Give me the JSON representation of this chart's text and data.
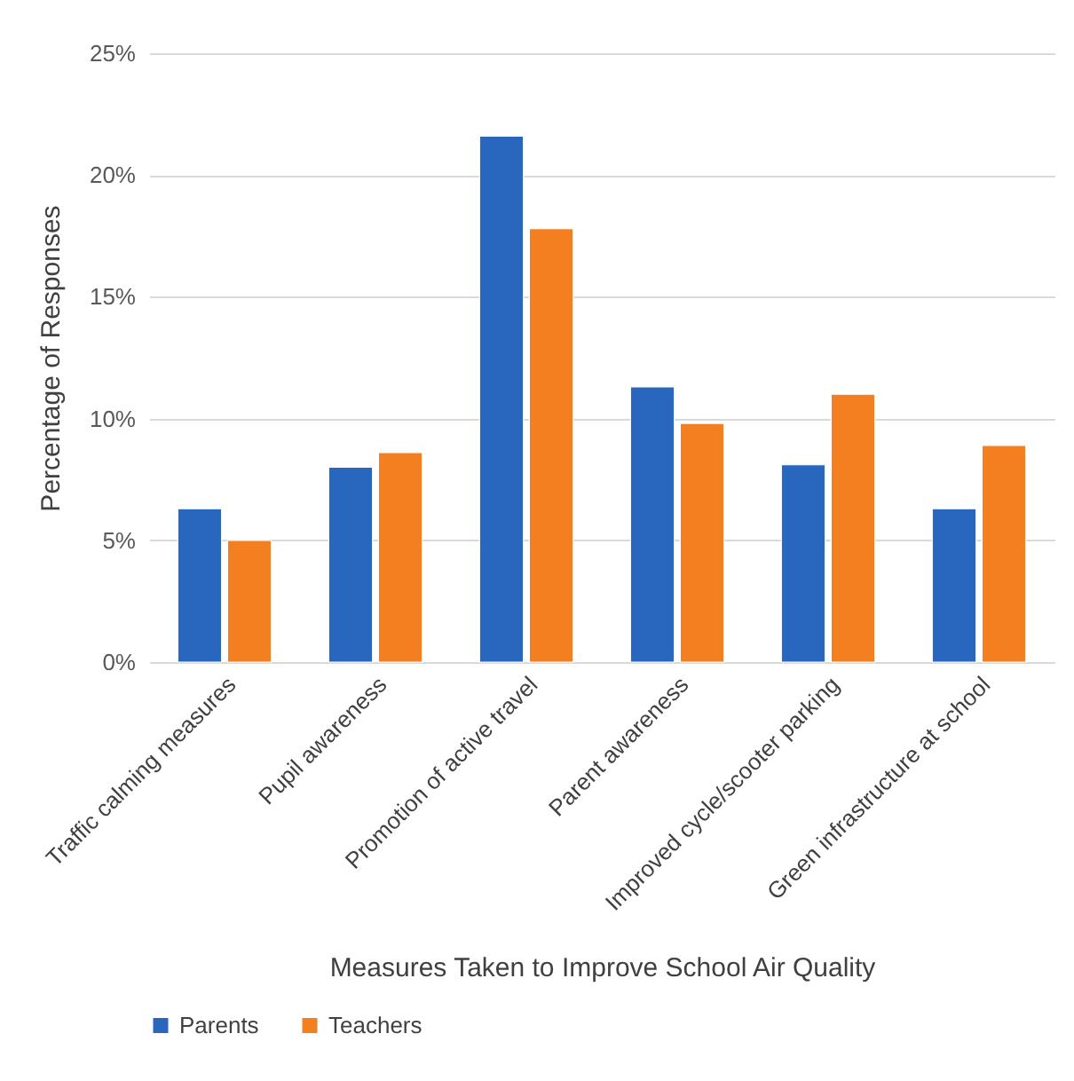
{
  "chart_data": {
    "type": "bar",
    "xlabel": "Measures Taken to Improve School Air Quality",
    "ylabel": "Percentage of Responses",
    "categories": [
      "Traffic calming measures",
      "Pupil awareness",
      "Promotion of active travel",
      "Parent awareness",
      "Improved cycle/scooter parking",
      "Green infrastructure at school"
    ],
    "series": [
      {
        "name": "Parents",
        "color": "#2867bd",
        "values": [
          6.3,
          8.0,
          21.6,
          11.3,
          8.1,
          6.3
        ]
      },
      {
        "name": "Teachers",
        "color": "#f47f20",
        "values": [
          5.0,
          8.6,
          17.8,
          9.8,
          11.0,
          8.9
        ]
      }
    ],
    "ylim": [
      0,
      25
    ],
    "yticks": [
      {
        "value": 0,
        "label": "0%"
      },
      {
        "value": 5,
        "label": "5%"
      },
      {
        "value": 10,
        "label": "10%"
      },
      {
        "value": 15,
        "label": "15%"
      },
      {
        "value": 20,
        "label": "20%"
      },
      {
        "value": 25,
        "label": "25%"
      }
    ],
    "grid": "y",
    "legend": "bottom"
  }
}
